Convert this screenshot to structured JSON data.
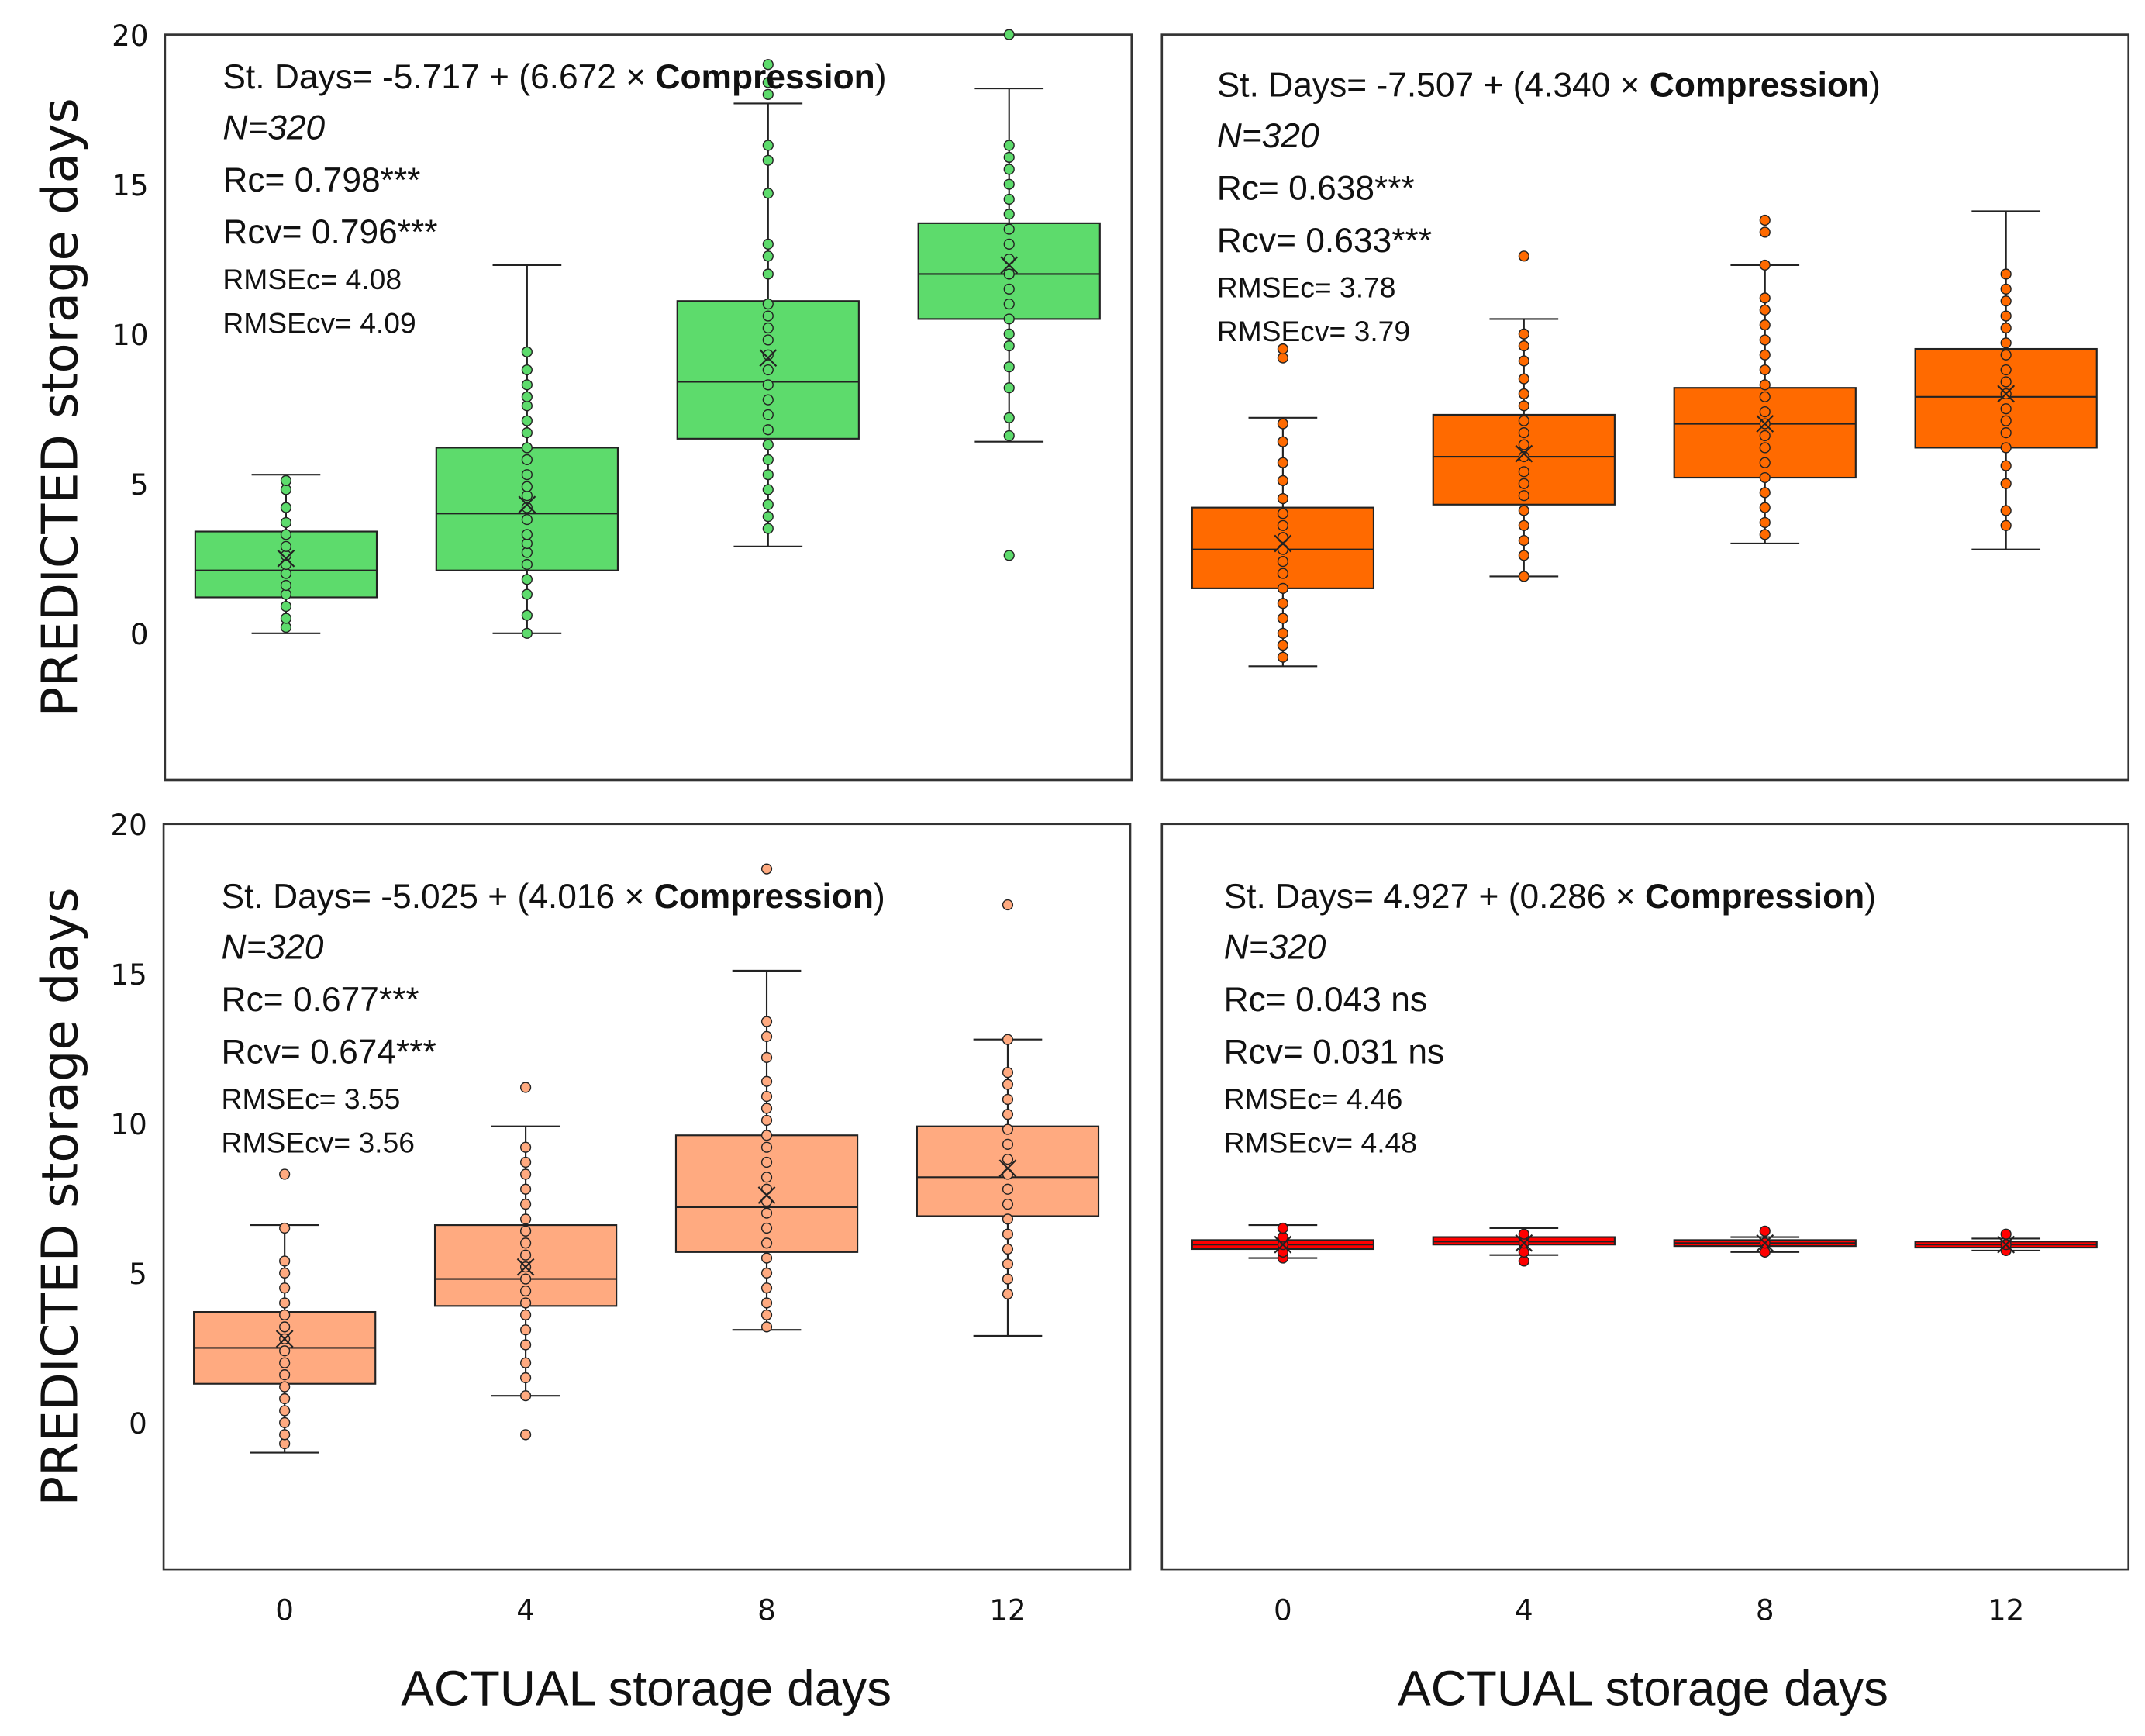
{
  "chart_data": {
    "type": "boxplot",
    "ylabel": "PREDICTED storage days",
    "xlabel": "ACTUAL storage days",
    "categories": [
      "0",
      "4",
      "8",
      "12"
    ],
    "yticks": [
      "0",
      "5",
      "10",
      "15",
      "20"
    ],
    "ylim": [
      -4.9,
      20
    ],
    "panels": [
      {
        "position": "top-left",
        "color": "#5ddb6c",
        "eq_prefix": "St. Days= -5.717 + (6.672 × ",
        "eq_bold": "Compression",
        "eq_suffix": ")",
        "n": "N=320",
        "rc": "Rc= 0.798***",
        "rcv": "Rcv= 0.796***",
        "rmsec": "RMSEc= 4.08",
        "rmsecv": "RMSEcv= 4.09",
        "boxes": [
          {
            "wl": 0,
            "q1": 1.2,
            "med": 2.1,
            "q3": 3.4,
            "wh": 5.3,
            "mean": 2.5,
            "points": [
              0.2,
              0.5,
              0.9,
              1.3,
              1.6,
              2.0,
              2.3,
              2.6,
              2.9,
              3.3,
              3.7,
              4.2,
              4.8,
              5.1
            ]
          },
          {
            "wl": 0,
            "q1": 2.1,
            "med": 4.0,
            "q3": 6.2,
            "wh": 12.3,
            "mean": 4.3,
            "points": [
              0,
              0.6,
              1.3,
              1.8,
              2.3,
              2.7,
              3.0,
              3.3,
              3.8,
              4.2,
              4.6,
              4.9,
              5.3,
              5.8,
              6.2,
              6.7,
              7.1,
              7.6,
              7.9,
              8.3,
              8.8,
              9.4
            ]
          },
          {
            "wl": 2.9,
            "q1": 6.5,
            "med": 8.4,
            "q3": 11.1,
            "wh": 17.7,
            "mean": 9.2,
            "points": [
              3.5,
              3.9,
              4.3,
              4.8,
              5.3,
              5.8,
              6.3,
              6.8,
              7.3,
              7.8,
              8.3,
              8.8,
              9.3,
              9.8,
              10.2,
              10.6,
              11.0,
              12.0,
              12.6,
              13.0,
              14.7,
              15.8,
              16.3,
              18.0,
              18.4,
              19.0
            ]
          },
          {
            "wl": 6.4,
            "q1": 10.5,
            "med": 12.0,
            "q3": 13.7,
            "wh": 18.2,
            "mean": 12.3,
            "points": [
              2.6,
              6.6,
              7.2,
              8.2,
              8.9,
              9.6,
              10.0,
              10.5,
              11.0,
              11.5,
              12.0,
              12.5,
              13.0,
              13.5,
              14.0,
              14.5,
              15.0,
              15.5,
              15.9,
              16.3,
              20
            ]
          }
        ]
      },
      {
        "position": "top-right",
        "color": "#ff6a00",
        "eq_prefix": "St. Days= -7.507 + (4.340 × ",
        "eq_bold": "Compression",
        "eq_suffix": ")",
        "n": "N=320",
        "rc": "Rc= 0.638***",
        "rcv": "Rcv= 0.633***",
        "rmsec": "RMSEc= 3.78",
        "rmsecv": "RMSEcv= 3.79",
        "boxes": [
          {
            "wl": -1.1,
            "q1": 1.5,
            "med": 2.8,
            "q3": 4.2,
            "wh": 7.2,
            "mean": 3.0,
            "points": [
              -0.8,
              -0.4,
              0,
              0.5,
              1,
              1.5,
              2,
              2.4,
              2.8,
              3.2,
              3.6,
              4.0,
              4.5,
              5.1,
              5.7,
              6.4,
              7.0,
              9.2,
              9.5
            ]
          },
          {
            "wl": 1.9,
            "q1": 4.3,
            "med": 5.9,
            "q3": 7.3,
            "wh": 10.5,
            "mean": 6.0,
            "points": [
              1.9,
              2.6,
              3.1,
              3.6,
              4.1,
              4.6,
              5.0,
              5.4,
              5.9,
              6.3,
              6.7,
              7.1,
              7.6,
              8.0,
              8.5,
              9.1,
              9.6,
              10.0,
              12.6
            ]
          },
          {
            "wl": 3.0,
            "q1": 5.2,
            "med": 7.0,
            "q3": 8.2,
            "wh": 12.3,
            "mean": 7.0,
            "points": [
              3.3,
              3.7,
              4.2,
              4.7,
              5.2,
              5.7,
              6.2,
              6.6,
              7.0,
              7.4,
              7.9,
              8.3,
              8.8,
              9.3,
              9.8,
              10.3,
              10.8,
              11.2,
              12.3,
              13.4,
              13.8
            ]
          },
          {
            "wl": 2.8,
            "q1": 6.2,
            "med": 7.9,
            "q3": 9.5,
            "wh": 14.1,
            "mean": 8.0,
            "points": [
              3.6,
              4.1,
              5.0,
              5.6,
              6.2,
              6.7,
              7.1,
              7.5,
              8.0,
              8.4,
              8.8,
              9.3,
              9.7,
              10.2,
              10.6,
              11.1,
              11.5,
              12.0
            ]
          }
        ]
      },
      {
        "position": "bottom-left",
        "color": "#ffaa80",
        "eq_prefix": "St. Days= -5.025 + (4.016 × ",
        "eq_bold": "Compression",
        "eq_suffix": ")",
        "n": "N=320",
        "rc": "Rc= 0.677***",
        "rcv": "Rcv= 0.674***",
        "rmsec": "RMSEc= 3.55",
        "rmsecv": "RMSEcv= 3.56",
        "boxes": [
          {
            "wl": -1.0,
            "q1": 1.3,
            "med": 2.5,
            "q3": 3.7,
            "wh": 6.6,
            "mean": 2.8,
            "points": [
              -0.7,
              -0.4,
              0,
              0.4,
              0.8,
              1.2,
              1.6,
              2,
              2.4,
              2.8,
              3.2,
              3.6,
              4.0,
              4.5,
              5.0,
              5.4,
              6.5,
              8.3
            ]
          },
          {
            "wl": 0.9,
            "q1": 3.9,
            "med": 4.8,
            "q3": 6.6,
            "wh": 9.9,
            "mean": 5.2,
            "points": [
              -0.4,
              0.9,
              1.5,
              2.0,
              2.6,
              3.1,
              3.6,
              4.0,
              4.4,
              4.8,
              5.2,
              5.6,
              6.0,
              6.4,
              6.8,
              7.3,
              7.8,
              8.3,
              8.7,
              9.2,
              11.2
            ]
          },
          {
            "wl": 3.1,
            "q1": 5.7,
            "med": 7.2,
            "q3": 9.6,
            "wh": 15.1,
            "mean": 7.6,
            "points": [
              3.2,
              3.6,
              4.0,
              4.5,
              5,
              5.5,
              6,
              6.5,
              7,
              7.4,
              7.8,
              8.2,
              8.7,
              9.2,
              9.6,
              10.1,
              10.5,
              10.9,
              11.4,
              12.2,
              12.9,
              13.4,
              18.5
            ]
          },
          {
            "wl": 2.9,
            "q1": 6.9,
            "med": 8.2,
            "q3": 9.9,
            "wh": 12.8,
            "mean": 8.5,
            "points": [
              4.3,
              4.8,
              5.3,
              5.8,
              6.3,
              6.8,
              7.3,
              7.8,
              8.3,
              8.8,
              9.3,
              9.8,
              10.3,
              10.8,
              11.3,
              11.7,
              12.8,
              17.3
            ]
          }
        ]
      },
      {
        "position": "bottom-right",
        "color": "#ff0000",
        "eq_prefix": "St. Days= 4.927 + (0.286 × ",
        "eq_bold": "Compression",
        "eq_suffix": ")",
        "n": "N=320",
        "rc": "Rc= 0.043 ns",
        "rcv": "Rcv= 0.031 ns",
        "rmsec": "RMSEc= 4.46",
        "rmsecv": "RMSEcv= 4.48",
        "boxes": [
          {
            "wl": 5.5,
            "q1": 5.8,
            "med": 5.95,
            "q3": 6.1,
            "wh": 6.6,
            "mean": 5.95,
            "points": [
              5.5,
              5.7,
              5.95,
              6.2,
              6.5
            ]
          },
          {
            "wl": 5.6,
            "q1": 5.95,
            "med": 6.05,
            "q3": 6.2,
            "wh": 6.5,
            "mean": 6.0,
            "points": [
              5.4,
              5.7,
              6.0,
              6.3
            ]
          },
          {
            "wl": 5.7,
            "q1": 5.9,
            "med": 6.0,
            "q3": 6.1,
            "wh": 6.2,
            "mean": 6.0,
            "points": [
              5.7,
              6.0,
              6.4
            ]
          },
          {
            "wl": 5.75,
            "q1": 5.85,
            "med": 5.95,
            "q3": 6.05,
            "wh": 6.15,
            "mean": 5.95,
            "points": [
              5.75,
              5.95,
              6.3
            ]
          }
        ]
      }
    ]
  }
}
